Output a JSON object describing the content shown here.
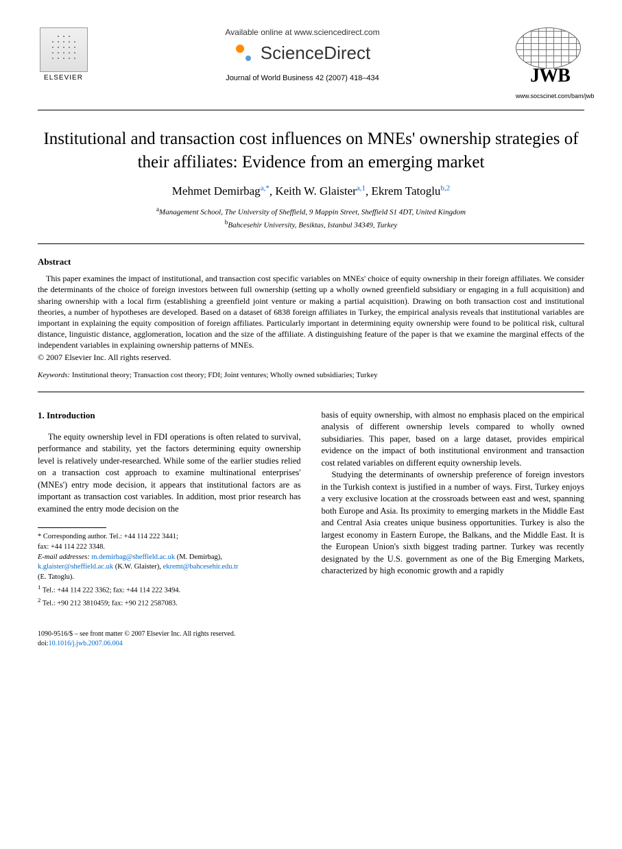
{
  "header": {
    "available_online": "Available online at www.sciencedirect.com",
    "sciencedirect": "ScienceDirect",
    "journal_reference": "Journal of World Business 42 (2007) 418–434",
    "elsevier_label": "ELSEVIER",
    "jwb_label": "JWB",
    "jwb_url": "www.socscinet.com/bam/jwb"
  },
  "title": "Institutional and transaction cost influences on MNEs' ownership strategies of their affiliates: Evidence from an emerging market",
  "authors": [
    {
      "name": "Mehmet Demirbag",
      "sup": "a,*"
    },
    {
      "name": "Keith W. Glaister",
      "sup": "a,1"
    },
    {
      "name": "Ekrem Tatoglu",
      "sup": "b,2"
    }
  ],
  "affiliations": [
    {
      "sup": "a",
      "text": "Management School, The University of Sheffield, 9 Mappin Street, Sheffield S1 4DT, United Kingdom"
    },
    {
      "sup": "b",
      "text": "Bahcesehir University, Besiktas, Istanbul 34349, Turkey"
    }
  ],
  "abstract": {
    "heading": "Abstract",
    "text": "This paper examines the impact of institutional, and transaction cost specific variables on MNEs' choice of equity ownership in their foreign affiliates. We consider the determinants of the choice of foreign investors between full ownership (setting up a wholly owned greenfield subsidiary or engaging in a full acquisition) and sharing ownership with a local firm (establishing a greenfield joint venture or making a partial acquisition). Drawing on both transaction cost and institutional theories, a number of hypotheses are developed. Based on a dataset of 6838 foreign affiliates in Turkey, the empirical analysis reveals that institutional variables are important in explaining the equity composition of foreign affiliates. Particularly important in determining equity ownership were found to be political risk, cultural distance, linguistic distance, agglomeration, location and the size of the affiliate. A distinguishing feature of the paper is that we examine the marginal effects of the independent variables in explaining ownership patterns of MNEs.",
    "copyright": "© 2007 Elsevier Inc. All rights reserved."
  },
  "keywords": {
    "label": "Keywords:",
    "text": "Institutional theory; Transaction cost theory; FDI; Joint ventures; Wholly owned subsidiaries; Turkey"
  },
  "section1": {
    "heading": "1. Introduction",
    "col1_p1": "The equity ownership level in FDI operations is often related to survival, performance and stability, yet the factors determining equity ownership level is relatively under-researched. While some of the earlier studies relied on a transaction cost approach to examine multinational enterprises' (MNEs') entry mode decision, it appears that institutional factors are as important as transaction cost variables. In addition, most prior research has examined the entry mode decision on the",
    "col2_p1": "basis of equity ownership, with almost no emphasis placed on the empirical analysis of different ownership levels compared to wholly owned subsidiaries. This paper, based on a large dataset, provides empirical evidence on the impact of both institutional environment and transaction cost related variables on different equity ownership levels.",
    "col2_p2": "Studying the determinants of ownership preference of foreign investors in the Turkish context is justified in a number of ways. First, Turkey enjoys a very exclusive location at the crossroads between east and west, spanning both Europe and Asia. Its proximity to emerging markets in the Middle East and Central Asia creates unique business opportunities. Turkey is also the largest economy in Eastern Europe, the Balkans, and the Middle East. It is the European Union's sixth biggest trading partner. Turkey was recently designated by the U.S. government as one of the Big Emerging Markets, characterized by high economic growth and a rapidly"
  },
  "footnotes": {
    "corresponding_label": "* Corresponding author. Tel.: +44 114 222 3441;",
    "corresponding_fax": "fax: +44 114 222 3348.",
    "email_label": "E-mail addresses:",
    "emails": [
      {
        "addr": "m.demirbag@sheffield.ac.uk",
        "person": "(M. Demirbag),"
      },
      {
        "addr": "k.glaister@sheffield.ac.uk",
        "person": "(K.W. Glaister),"
      },
      {
        "addr": "ekremt@bahcesehir.edu.tr",
        "person": ""
      }
    ],
    "email_trail": "(E. Tatoglu).",
    "fn1": "Tel.: +44 114 222 3362; fax: +44 114 222 3494.",
    "fn2": "Tel.: +90 212 3810459; fax: +90 212 2587083."
  },
  "footer": {
    "issn": "1090-9516/$ – see front matter © 2007 Elsevier Inc. All rights reserved.",
    "doi_label": "doi:",
    "doi": "10.1016/j.jwb.2007.06.004"
  },
  "colors": {
    "link": "#0066cc",
    "text": "#000000",
    "background": "#ffffff"
  }
}
